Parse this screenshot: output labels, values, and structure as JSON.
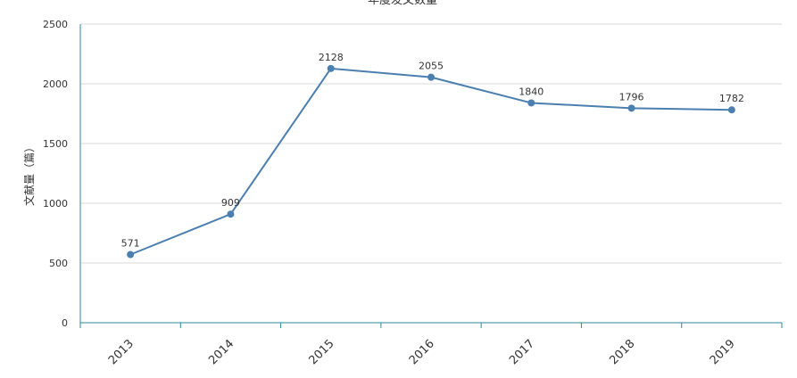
{
  "chart_data": {
    "type": "line",
    "title": "年度发文数量",
    "xlabel": "",
    "ylabel": "文献量（篇）",
    "categories": [
      "2013",
      "2014",
      "2015",
      "2016",
      "2017",
      "2018",
      "2019"
    ],
    "series": [
      {
        "values": [
          571,
          909,
          2128,
          2055,
          1840,
          1796,
          1782
        ]
      }
    ],
    "ylim": [
      0,
      2500
    ],
    "yticks": [
      0,
      500,
      1000,
      1500,
      2000,
      2500
    ],
    "grid": true,
    "legend": "none",
    "line_color": "#4a7fb0",
    "axis_color": "#2a8a9a"
  }
}
